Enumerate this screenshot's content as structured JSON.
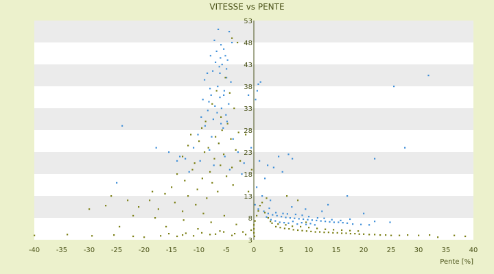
{
  "chart_data": {
    "type": "scatter",
    "title": "VITESSE vs PENTE",
    "xlabel": "Pente [%]",
    "ylabel": "",
    "xlim": [
      -40,
      40
    ],
    "ylim": [
      3,
      53
    ],
    "xticks": [
      -40,
      -35,
      -30,
      -25,
      -20,
      -15,
      -10,
      -5,
      0,
      5,
      10,
      15,
      20,
      25,
      30,
      35,
      40
    ],
    "yticks": [
      3,
      8,
      13,
      18,
      23,
      28,
      33,
      38,
      43,
      48,
      53
    ],
    "grid": "alternating horizontal bands",
    "legend": "none",
    "colors": {
      "background": "#ecf1cc",
      "band_light": "#ffffff",
      "band_dark": "#ebebeb",
      "text": "#4a5218",
      "series_blue": "#3f8fd8",
      "series_olive": "#7b7f14"
    },
    "series": [
      {
        "color": "#3f8fd8",
        "points": [
          [
            -6.5,
            51
          ],
          [
            -4.5,
            50.5
          ],
          [
            -7.2,
            48.5
          ],
          [
            -6.0,
            47.5
          ],
          [
            -5.5,
            46.5
          ],
          [
            -6.8,
            46
          ],
          [
            -5.2,
            45
          ],
          [
            -6.1,
            44.5
          ],
          [
            -4.8,
            44
          ],
          [
            -7.0,
            43.5
          ],
          [
            -5.8,
            43
          ],
          [
            -6.3,
            42.5
          ],
          [
            -5.0,
            42
          ],
          [
            -7.5,
            41.5
          ],
          [
            -8.5,
            41
          ],
          [
            -9.0,
            39.5
          ],
          [
            -4.2,
            39
          ],
          [
            -6.6,
            38
          ],
          [
            -8.0,
            37.5
          ],
          [
            -5.4,
            37
          ],
          [
            -7.8,
            36
          ],
          [
            -9.3,
            35
          ],
          [
            -6.2,
            35.5
          ],
          [
            -4.6,
            34
          ],
          [
            -7.1,
            33.5
          ],
          [
            -5.9,
            33
          ],
          [
            -8.4,
            32.5
          ],
          [
            -6.7,
            32
          ],
          [
            -5.1,
            31.5
          ],
          [
            -9.6,
            31
          ],
          [
            -7.4,
            30.5
          ],
          [
            -4.9,
            30
          ],
          [
            -6.0,
            29.5
          ],
          [
            -8.9,
            29
          ],
          [
            -5.6,
            28.5
          ],
          [
            -10.2,
            27
          ],
          [
            -7.7,
            26.5
          ],
          [
            -3.8,
            26
          ],
          [
            -6.4,
            25
          ],
          [
            -11.0,
            24
          ],
          [
            -8.1,
            23.5
          ],
          [
            -2.9,
            23
          ],
          [
            -5.3,
            22
          ],
          [
            -12.5,
            21.5
          ],
          [
            -9.8,
            21
          ],
          [
            -1.8,
            20.5
          ],
          [
            -7.3,
            20
          ],
          [
            -4.4,
            19
          ],
          [
            -11.8,
            18.5
          ],
          [
            -2.2,
            18
          ],
          [
            -13.5,
            22
          ],
          [
            -15.5,
            23
          ],
          [
            -24.0,
            29
          ],
          [
            -17.8,
            24
          ],
          [
            -25.0,
            16
          ],
          [
            -14.0,
            21
          ],
          [
            -1.0,
            36
          ],
          [
            -0.5,
            24
          ],
          [
            0.8,
            38.5
          ],
          [
            1.2,
            39
          ],
          [
            0.6,
            37
          ],
          [
            0.3,
            35
          ],
          [
            1.0,
            21
          ],
          [
            2.5,
            20
          ],
          [
            4.5,
            22
          ],
          [
            6.3,
            22.5
          ],
          [
            7.0,
            21.5
          ],
          [
            3.6,
            19.5
          ],
          [
            5.2,
            18.5
          ],
          [
            2.0,
            17
          ],
          [
            0.5,
            15
          ],
          [
            1.5,
            13
          ],
          [
            3.0,
            12
          ],
          [
            0.2,
            11
          ],
          [
            0.8,
            10
          ],
          [
            1.8,
            9.5
          ],
          [
            2.6,
            9
          ],
          [
            3.4,
            8.7
          ],
          [
            4.2,
            8.5
          ],
          [
            5.0,
            8.3
          ],
          [
            5.8,
            8.1
          ],
          [
            6.6,
            8.0
          ],
          [
            7.4,
            7.9
          ],
          [
            8.2,
            7.8
          ],
          [
            9.0,
            7.7
          ],
          [
            9.8,
            7.6
          ],
          [
            10.6,
            7.5
          ],
          [
            11.4,
            7.4
          ],
          [
            12.2,
            7.3
          ],
          [
            13.0,
            7.2
          ],
          [
            13.8,
            7.1
          ],
          [
            14.6,
            7.0
          ],
          [
            15.4,
            7.0
          ],
          [
            16.2,
            6.9
          ],
          [
            17.0,
            6.8
          ],
          [
            18.0,
            6.6
          ],
          [
            19.5,
            6.5
          ],
          [
            21.0,
            6.4
          ],
          [
            2.3,
            8.2
          ],
          [
            3.1,
            7.6
          ],
          [
            3.9,
            7.3
          ],
          [
            4.7,
            7.0
          ],
          [
            5.5,
            6.9
          ],
          [
            6.3,
            6.8
          ],
          [
            7.1,
            7.2
          ],
          [
            7.9,
            6.6
          ],
          [
            8.7,
            6.9
          ],
          [
            9.5,
            6.5
          ],
          [
            10.3,
            6.7
          ],
          [
            11.1,
            6.4
          ],
          [
            4.0,
            9.2
          ],
          [
            5.3,
            9.0
          ],
          [
            6.1,
            8.9
          ],
          [
            7.6,
            8.8
          ],
          [
            8.8,
            8.6
          ],
          [
            10.0,
            8.3
          ],
          [
            11.6,
            8.0
          ],
          [
            12.8,
            7.9
          ],
          [
            14.2,
            7.6
          ],
          [
            15.8,
            7.4
          ],
          [
            2.8,
            10.2
          ],
          [
            6.9,
            10.5
          ],
          [
            9.4,
            10.0
          ],
          [
            12.4,
            9.5
          ],
          [
            17.5,
            7.7
          ],
          [
            22.0,
            7.2
          ],
          [
            24.8,
            7.0
          ],
          [
            13.5,
            11
          ],
          [
            17.0,
            13
          ],
          [
            20.0,
            9.0
          ],
          [
            25.5,
            38
          ],
          [
            31.8,
            40.5
          ],
          [
            27.5,
            24
          ],
          [
            22.0,
            21.5
          ],
          [
            -6.2,
            41
          ],
          [
            -5.0,
            40
          ],
          [
            -7.9,
            45
          ],
          [
            -4.0,
            48
          ],
          [
            -5.5,
            36
          ],
          [
            -8.2,
            34.5
          ]
        ]
      },
      {
        "color": "#7b7f14",
        "points": [
          [
            -4.0,
            49
          ],
          [
            -3.0,
            48
          ],
          [
            -5.2,
            40
          ],
          [
            -6.8,
            37
          ],
          [
            -4.4,
            36.5
          ],
          [
            -7.6,
            34
          ],
          [
            -3.6,
            33
          ],
          [
            -6.0,
            31
          ],
          [
            -8.8,
            30
          ],
          [
            -4.8,
            29.5
          ],
          [
            -9.5,
            28.5
          ],
          [
            -5.8,
            28
          ],
          [
            -2.8,
            27.5
          ],
          [
            -11.5,
            27
          ],
          [
            -7.0,
            26.5
          ],
          [
            -4.2,
            26
          ],
          [
            -10.0,
            25.5
          ],
          [
            -6.4,
            25
          ],
          [
            -12.0,
            24.5
          ],
          [
            -8.3,
            24
          ],
          [
            -3.3,
            23.5
          ],
          [
            -9.0,
            23
          ],
          [
            -5.5,
            22.5
          ],
          [
            -13.0,
            22
          ],
          [
            -7.2,
            21.5
          ],
          [
            -2.5,
            21
          ],
          [
            -10.8,
            20.5
          ],
          [
            -6.1,
            20
          ],
          [
            -4.0,
            19.5
          ],
          [
            -11.2,
            19
          ],
          [
            -8.0,
            18.5
          ],
          [
            -14.0,
            18
          ],
          [
            -5.0,
            17.5
          ],
          [
            -9.4,
            17
          ],
          [
            -12.6,
            16.5
          ],
          [
            -7.6,
            16
          ],
          [
            -3.8,
            15.5
          ],
          [
            -15.0,
            15
          ],
          [
            -10.3,
            14.5
          ],
          [
            -6.6,
            14
          ],
          [
            -16.2,
            13.5
          ],
          [
            -12.0,
            13
          ],
          [
            -8.6,
            12.5
          ],
          [
            -19.0,
            12
          ],
          [
            -14.4,
            11.5
          ],
          [
            -10.6,
            11
          ],
          [
            -21.0,
            10.5
          ],
          [
            -17.4,
            10
          ],
          [
            -13.0,
            9.5
          ],
          [
            -9.2,
            9
          ],
          [
            -5.4,
            8.5
          ],
          [
            -18.0,
            8
          ],
          [
            -12.8,
            7.5
          ],
          [
            -7.8,
            7
          ],
          [
            -3.2,
            6.5
          ],
          [
            -16.0,
            6
          ],
          [
            -10.2,
            5.5
          ],
          [
            -6.2,
            5
          ],
          [
            -2.0,
            4.8
          ],
          [
            -12.4,
            4.5
          ],
          [
            -8.0,
            4.2
          ],
          [
            -4.0,
            4.0
          ],
          [
            -14.0,
            3.8
          ],
          [
            -40.0,
            4.0
          ],
          [
            -34.0,
            4.2
          ],
          [
            -29.5,
            3.9
          ],
          [
            -25.5,
            4.1
          ],
          [
            -22.0,
            3.8
          ],
          [
            -20.0,
            3.6
          ],
          [
            -17.0,
            3.9
          ],
          [
            -15.5,
            4.4
          ],
          [
            -13.0,
            4.1
          ],
          [
            -11.0,
            3.9
          ],
          [
            -9.5,
            4.6
          ],
          [
            -7.0,
            4.3
          ],
          [
            -5.5,
            4.8
          ],
          [
            -3.5,
            4.4
          ],
          [
            -1.5,
            4.2
          ],
          [
            -0.5,
            5.2
          ],
          [
            0.1,
            3.8
          ],
          [
            0.0,
            4.6
          ],
          [
            0.0,
            5.5
          ],
          [
            0.0,
            6.4
          ],
          [
            0.2,
            7.3
          ],
          [
            0.5,
            8.5
          ],
          [
            0.8,
            9.6
          ],
          [
            1.1,
            10.8
          ],
          [
            1.5,
            11.5
          ],
          [
            2.0,
            9.2
          ],
          [
            2.6,
            8.0
          ],
          [
            3.3,
            6.8
          ],
          [
            4.0,
            6.0
          ],
          [
            4.8,
            5.8
          ],
          [
            5.6,
            5.6
          ],
          [
            6.4,
            5.5
          ],
          [
            7.2,
            5.3
          ],
          [
            8.0,
            5.2
          ],
          [
            8.8,
            5.1
          ],
          [
            9.6,
            5.0
          ],
          [
            10.4,
            4.9
          ],
          [
            11.2,
            4.8
          ],
          [
            12.0,
            4.8
          ],
          [
            12.8,
            4.7
          ],
          [
            13.6,
            4.7
          ],
          [
            14.4,
            4.6
          ],
          [
            15.2,
            4.6
          ],
          [
            16.0,
            4.5
          ],
          [
            16.8,
            4.5
          ],
          [
            17.6,
            4.4
          ],
          [
            18.4,
            4.4
          ],
          [
            19.2,
            4.3
          ],
          [
            20.0,
            4.3
          ],
          [
            21.0,
            4.2
          ],
          [
            22.0,
            4.2
          ],
          [
            23.0,
            4.1
          ],
          [
            24.0,
            4.1
          ],
          [
            25.0,
            4.0
          ],
          [
            26.5,
            4.0
          ],
          [
            28.0,
            4.1
          ],
          [
            30.0,
            4.0
          ],
          [
            32.0,
            4.1
          ],
          [
            33.5,
            3.6
          ],
          [
            36.5,
            4.0
          ],
          [
            38.5,
            3.8
          ],
          [
            3.0,
            7.2
          ],
          [
            4.4,
            6.6
          ],
          [
            5.8,
            6.4
          ],
          [
            7.0,
            6.1
          ],
          [
            8.5,
            6.0
          ],
          [
            10.0,
            5.8
          ],
          [
            11.5,
            5.6
          ],
          [
            13.0,
            5.4
          ],
          [
            14.5,
            5.3
          ],
          [
            16.0,
            5.2
          ],
          [
            17.5,
            5.1
          ],
          [
            19.0,
            5.0
          ],
          [
            6.0,
            13
          ],
          [
            8.0,
            12
          ],
          [
            9.5,
            7.0
          ],
          [
            2.3,
            12.5
          ],
          [
            -1.0,
            14
          ],
          [
            -0.4,
            19
          ],
          [
            -1.5,
            27
          ],
          [
            -23.0,
            12
          ],
          [
            -18.5,
            14
          ],
          [
            -26.0,
            13
          ],
          [
            -30.0,
            10
          ],
          [
            -22.0,
            8.5
          ],
          [
            -24.5,
            6.0
          ],
          [
            -27.0,
            10.8
          ]
        ]
      }
    ]
  }
}
